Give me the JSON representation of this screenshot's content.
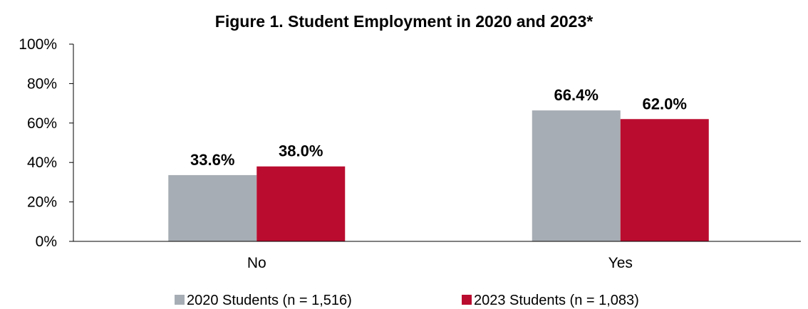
{
  "chart_data": {
    "type": "bar",
    "title": "Figure 1. Student Employment in 2020 and 2023*",
    "xlabel": "",
    "ylabel": "",
    "categories": [
      "No",
      "Yes"
    ],
    "series": [
      {
        "name": "2020 Students (n = 1,516)",
        "values": [
          33.6,
          66.4
        ],
        "labels": [
          "33.6%",
          "66.4%"
        ],
        "color": "#a7adb4"
      },
      {
        "name": "2023 Students (n = 1,083)",
        "values": [
          38.0,
          62.0
        ],
        "labels": [
          "38.0%",
          "62.0%"
        ],
        "color": "#ba0c2f"
      }
    ],
    "ylim": [
      0,
      100
    ],
    "yticks": [
      0,
      20,
      40,
      60,
      80,
      100
    ],
    "ytick_labels": [
      "0%",
      "20%",
      "40%",
      "60%",
      "80%",
      "100%"
    ],
    "grid": false,
    "legend": "bottom"
  }
}
